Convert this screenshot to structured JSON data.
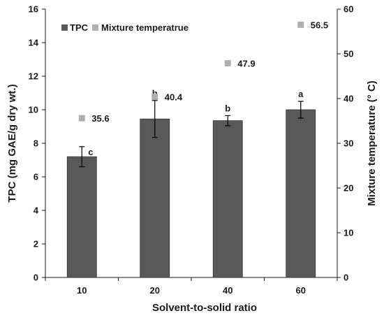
{
  "chart_data": {
    "type": "bar",
    "title": "",
    "xlabel": "Solvent-to-solid ratio",
    "ylabel": "TPC (mg GAE/g dry wt.)",
    "y2label": "Mixture temperature (° C)",
    "categories": [
      "10",
      "20",
      "40",
      "60"
    ],
    "ylim": [
      0,
      16
    ],
    "yticks": [
      0,
      2,
      4,
      6,
      8,
      10,
      12,
      14,
      16
    ],
    "y2lim": [
      0,
      60
    ],
    "y2ticks": [
      0,
      10,
      20,
      30,
      40,
      50,
      60
    ],
    "grid": false,
    "legend_position": "top-left",
    "series": [
      {
        "name": "TPC",
        "type": "bar",
        "axis": "left",
        "color": "#595959",
        "values": [
          7.2,
          9.45,
          9.35,
          10.0
        ],
        "error": [
          0.6,
          1.1,
          0.3,
          0.5
        ],
        "significance": [
          "c",
          "b",
          "b",
          "a"
        ]
      },
      {
        "name": "Mixture temperatrue",
        "type": "scatter",
        "axis": "right",
        "color": "#b0b0b0",
        "values": [
          35.6,
          40.4,
          47.9,
          56.5
        ],
        "labels": [
          "35.6",
          "40.4",
          "47.9",
          "56.5"
        ]
      }
    ]
  }
}
